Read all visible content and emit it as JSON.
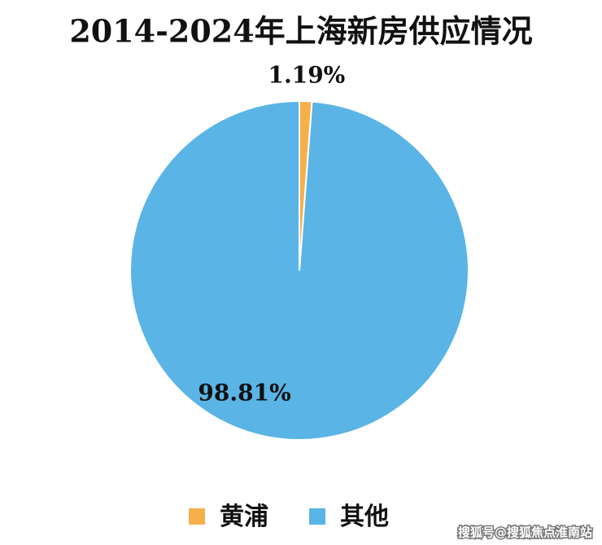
{
  "chart_data": {
    "type": "pie",
    "title": "2014-2024年上海新房供应情况",
    "categories": [
      "黄浦",
      "其他"
    ],
    "values": [
      1.19,
      98.81
    ],
    "value_labels": [
      "1.19%",
      "98.81%"
    ],
    "colors": [
      "#f5b04a",
      "#5ab4e5"
    ],
    "legend": "bottom",
    "watermark": "搜狐号@搜狐焦点淮南站"
  }
}
